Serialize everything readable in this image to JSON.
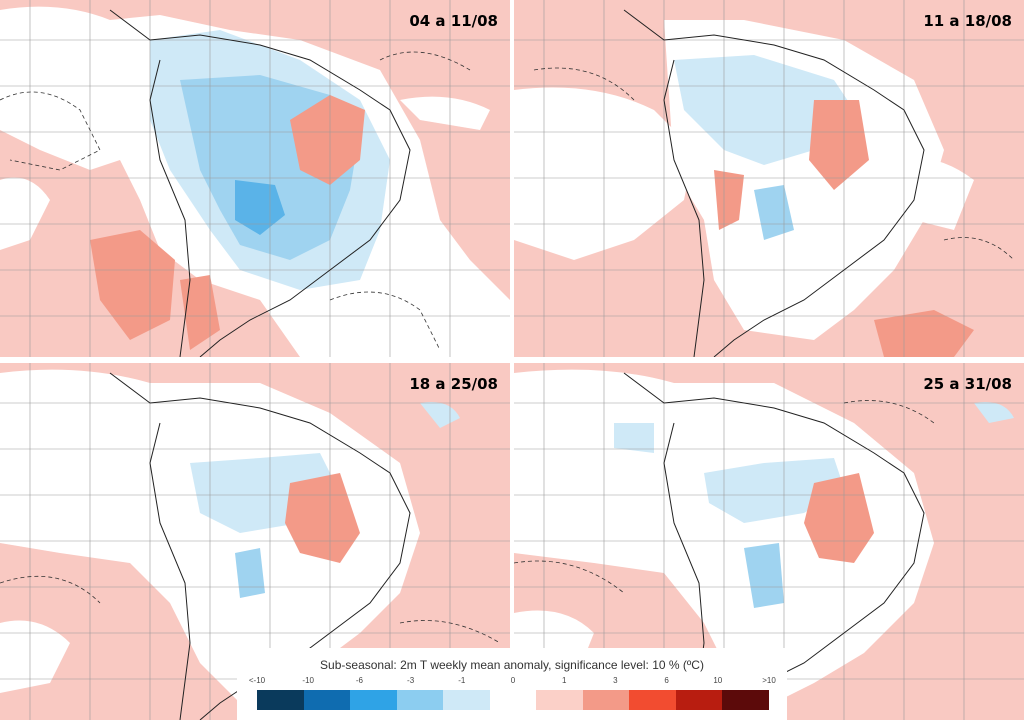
{
  "panels": [
    {
      "label": "04 a 11/08"
    },
    {
      "label": "11 a 18/08"
    },
    {
      "label": "18 a 25/08"
    },
    {
      "label": "25 a 31/08"
    }
  ],
  "legend": {
    "title": "Sub-seasonal: 2m T weekly mean anomaly, significance level: 10 % (ºC)",
    "ticks": [
      "<-10",
      "-10",
      "-6",
      "-3",
      "-1",
      "0",
      "1",
      "3",
      "6",
      "10",
      ">10"
    ],
    "colors": [
      "#0a3a5c",
      "#0f6cb0",
      "#2fa3e6",
      "#8ccdf0",
      "#cfe9f7",
      "#ffffff",
      "#fbd0c8",
      "#f39a88",
      "#f24c30",
      "#b81d10",
      "#5c0a0a"
    ]
  },
  "colors": {
    "positive_anomaly": "#f9c9c2",
    "neutral": "#ffffff",
    "negative_light": "#cfe9f7",
    "negative_mid": "#9fd3f0",
    "strong_positive": "#f39a88"
  }
}
